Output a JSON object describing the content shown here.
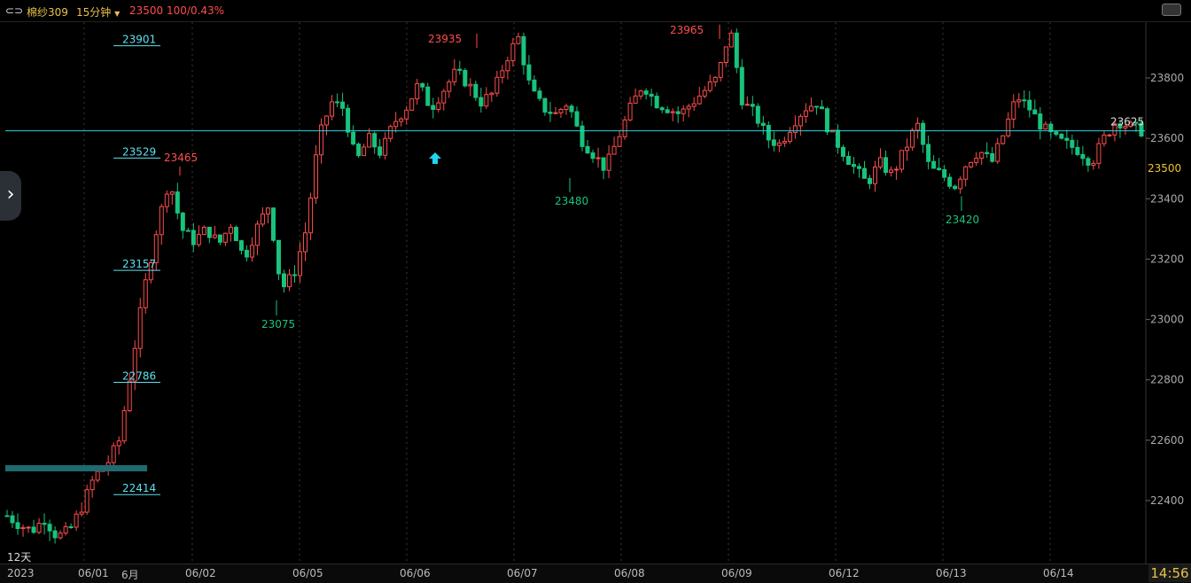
{
  "toolbar": {
    "icon": "link-icon",
    "symbol": "棉纱309",
    "period": "15分钟",
    "price": "23500",
    "change": "100/0.43%"
  },
  "bottom": {
    "period_span": "12天",
    "year": "2023",
    "time": "14:56",
    "date_labels": [
      "06/01",
      "6月",
      "06/02",
      "06/05",
      "06/06",
      "06/07",
      "06/08",
      "06/09",
      "06/12",
      "06/13",
      "06/14"
    ]
  },
  "colors": {
    "up": "#ff4d4d",
    "down": "#19c37d",
    "level": "#5ee0f0",
    "horizontal": "#29d3e0",
    "price_label": "#f2c230"
  },
  "chart_data": {
    "type": "candlestick",
    "y_axis": {
      "min": 22300,
      "max": 24100,
      "ticks": [
        22400,
        22600,
        22800,
        23000,
        23200,
        23400,
        23600,
        23800
      ]
    },
    "current_price": 23500,
    "horizontal_line": 23625,
    "horizontal_line_label": "23625",
    "levels": [
      23901,
      23529,
      23157,
      22786,
      22414
    ],
    "annotations": [
      {
        "text": "23465",
        "type": "high"
      },
      {
        "text": "23075",
        "type": "low"
      },
      {
        "text": "23935",
        "type": "high"
      },
      {
        "text": "23480",
        "type": "low"
      },
      {
        "text": "23965",
        "type": "high"
      },
      {
        "text": "23420",
        "type": "low"
      }
    ],
    "series_waypoints": [
      22350,
      22320,
      22300,
      22340,
      22280,
      22300,
      22380,
      22480,
      22520,
      22600,
      22850,
      23100,
      23300,
      23465,
      23300,
      23260,
      23300,
      23250,
      23320,
      23200,
      23300,
      23380,
      23100,
      23150,
      23300,
      23600,
      23720,
      23700,
      23520,
      23600,
      23550,
      23650,
      23700,
      23780,
      23700,
      23760,
      23820,
      23780,
      23720,
      23750,
      23860,
      23935,
      23760,
      23700,
      23680,
      23720,
      23600,
      23550,
      23500,
      23600,
      23700,
      23780,
      23720,
      23700,
      23680,
      23720,
      23760,
      23800,
      23965,
      23720,
      23680,
      23600,
      23580,
      23650,
      23700,
      23720,
      23620,
      23560,
      23500,
      23450,
      23520,
      23480,
      23560,
      23650,
      23500,
      23480,
      23440,
      23520,
      23560,
      23520,
      23620,
      23740,
      23700,
      23640,
      23600,
      23580,
      23560,
      23520,
      23600,
      23660,
      23640,
      23625
    ]
  }
}
